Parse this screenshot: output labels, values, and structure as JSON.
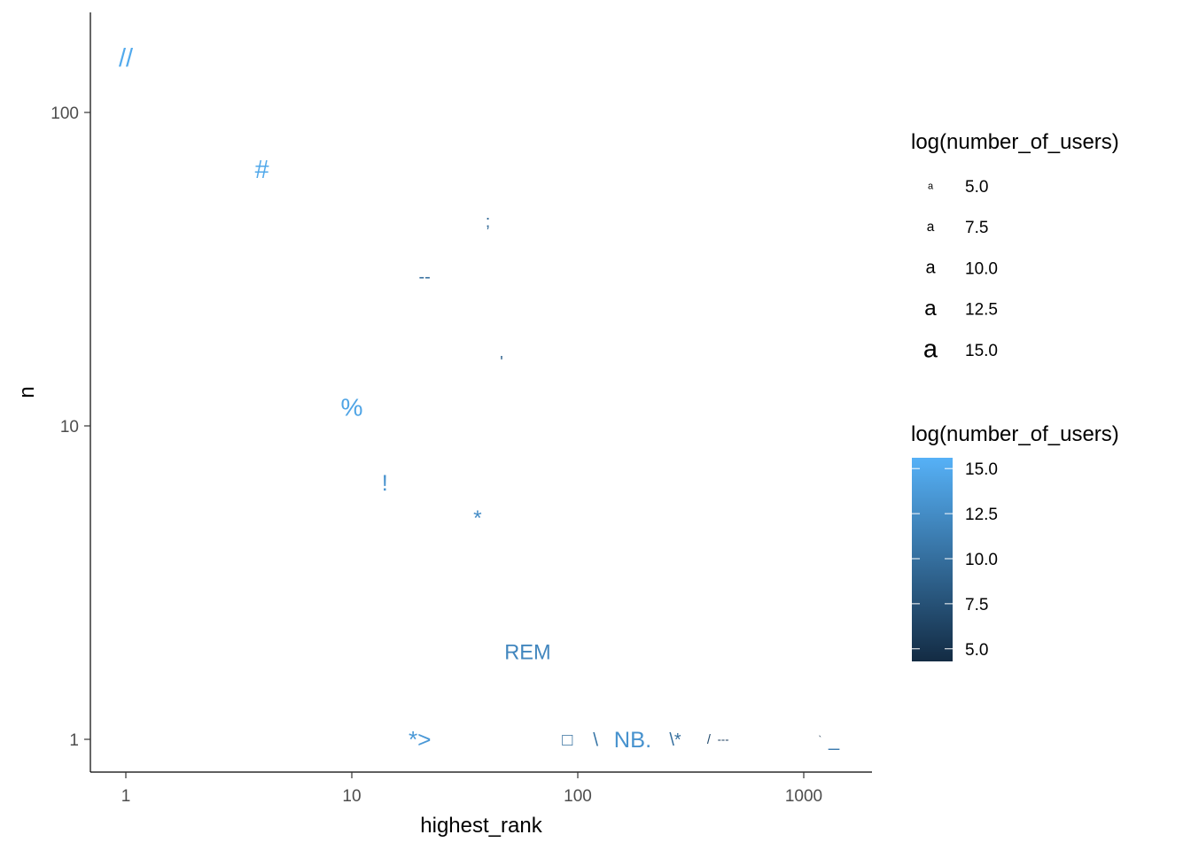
{
  "chart_data": {
    "type": "scatter",
    "title": "",
    "xlabel": "highest_rank",
    "ylabel": "n",
    "x_scale": "log10",
    "y_scale": "log10",
    "xlim": [
      0.7,
      1800
    ],
    "ylim": [
      0.6,
      200
    ],
    "x_ticks": [
      1,
      10,
      100,
      1000
    ],
    "x_tick_labels": [
      "1",
      "10",
      "100",
      "1000"
    ],
    "y_ticks": [
      1,
      10,
      100
    ],
    "y_tick_labels": [
      "1",
      "10",
      "100"
    ],
    "grid": false,
    "legend_position": "right",
    "points": [
      {
        "label": "//",
        "x": 1.0,
        "y": 150,
        "log_users": 15.0
      },
      {
        "label": "#",
        "x": 4.0,
        "y": 66,
        "log_users": 14.8
      },
      {
        "label": ";",
        "x": 40,
        "y": 45,
        "log_users": 9.5
      },
      {
        "label": "--",
        "x": 21,
        "y": 30,
        "log_users": 10.0
      },
      {
        "label": "'",
        "x": 46,
        "y": 16,
        "log_users": 9.0
      },
      {
        "label": "%",
        "x": 10,
        "y": 11.5,
        "log_users": 14.5
      },
      {
        "label": "!",
        "x": 14,
        "y": 6.6,
        "log_users": 13.0
      },
      {
        "label": "*",
        "x": 36,
        "y": 5.1,
        "log_users": 12.5
      },
      {
        "label": "REM",
        "x": 60,
        "y": 1.9,
        "log_users": 12.0
      },
      {
        "label": "*>",
        "x": 20,
        "y": 1.0,
        "log_users": 13.5
      },
      {
        "label": "□",
        "x": 90,
        "y": 1.0,
        "log_users": 10.0
      },
      {
        "label": "\\",
        "x": 120,
        "y": 1.0,
        "log_users": 10.5
      },
      {
        "label": "NB.",
        "x": 175,
        "y": 1.0,
        "log_users": 13.0
      },
      {
        "label": "\\*",
        "x": 270,
        "y": 1.0,
        "log_users": 10.0
      },
      {
        "label": "/",
        "x": 380,
        "y": 1.0,
        "log_users": 7.0
      },
      {
        "label": "---",
        "x": 440,
        "y": 1.0,
        "log_users": 6.0
      },
      {
        "label": "`",
        "x": 1180,
        "y": 1.0,
        "log_users": 5.0
      },
      {
        "label": "_",
        "x": 1360,
        "y": 1.0,
        "log_users": 11.0
      }
    ],
    "size_legend": {
      "title": "log(number_of_users)",
      "glyph": "a",
      "entries": [
        "5.0",
        "7.5",
        "10.0",
        "12.5",
        "15.0"
      ],
      "values": [
        5,
        7.5,
        10,
        12.5,
        15
      ]
    },
    "color_legend": {
      "title": "log(number_of_users)",
      "low_color": "#132B43",
      "high_color": "#56B1F7",
      "range": [
        4.3,
        15.6
      ],
      "entries": [
        "15.0",
        "12.5",
        "10.0",
        "7.5",
        "5.0"
      ],
      "values": [
        15,
        12.5,
        10,
        7.5,
        5
      ]
    }
  }
}
